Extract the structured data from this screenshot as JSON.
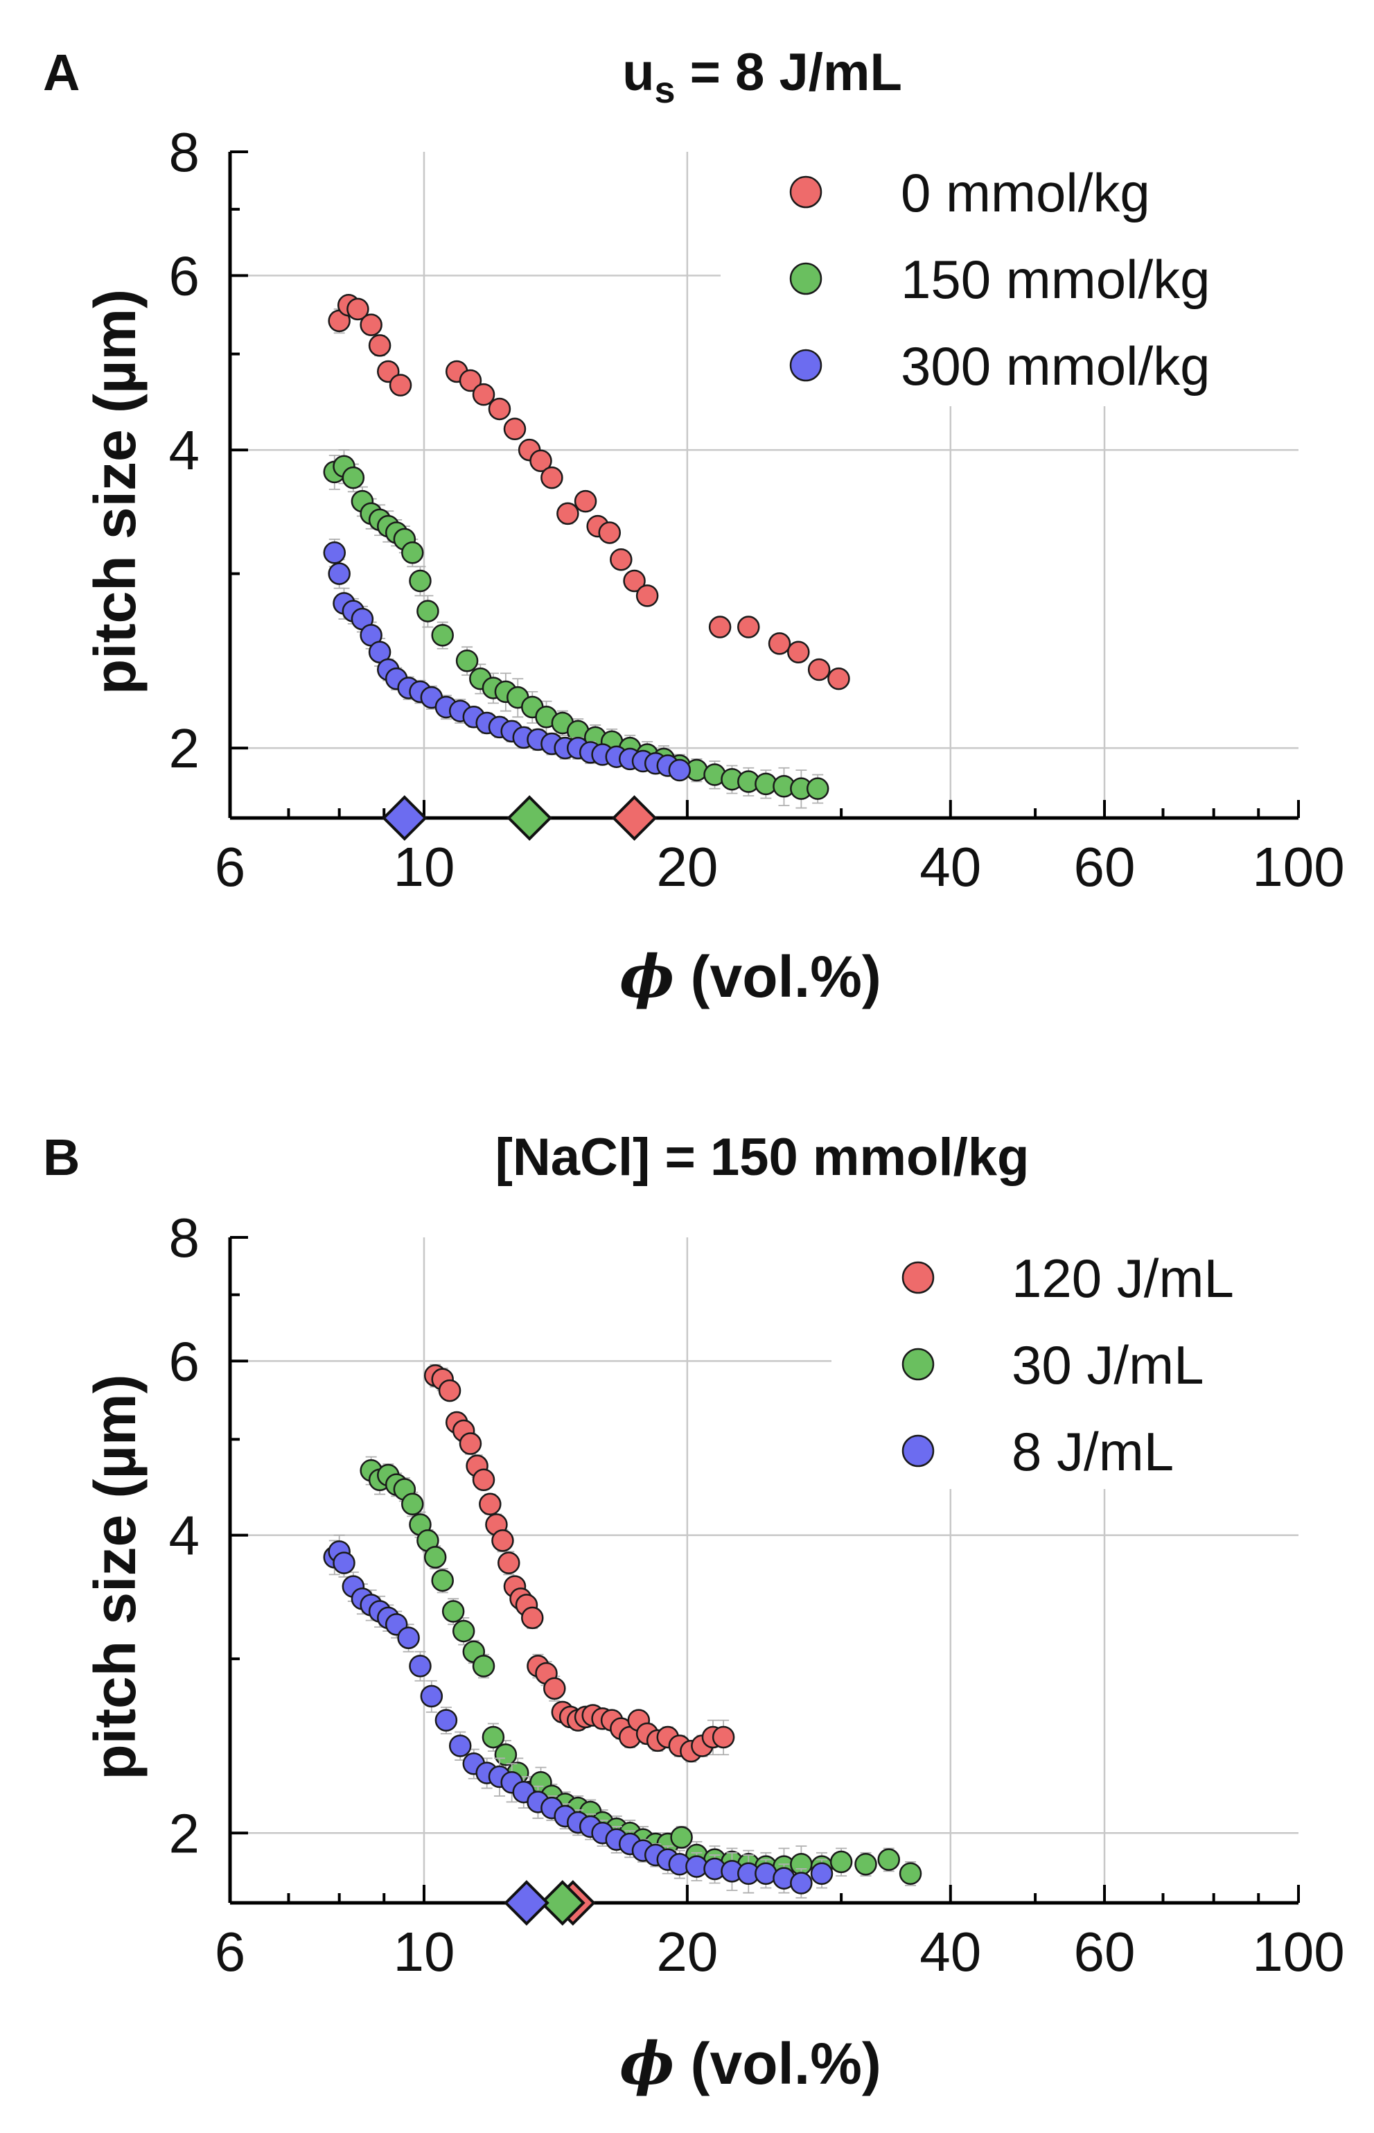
{
  "colors": {
    "red": "#ee6b6b",
    "green": "#6abf5f",
    "blue": "#6c6cf0"
  },
  "chart_data": [
    {
      "type": "scatter",
      "panel_label": "A",
      "title": "u",
      "title_sub": "s",
      "title_rest": " = 8 J/mL",
      "xlabel_symbol": "ϕ",
      "xlabel": " (vol.%)",
      "ylabel": "pitch size (µm)",
      "xscale": "log",
      "yscale": "log",
      "xlim": [
        6,
        100
      ],
      "ylim": [
        1.7,
        8
      ],
      "xticks": [
        6,
        10,
        20,
        40,
        60,
        100
      ],
      "xtick_labels": [
        "6",
        "10",
        "20",
        "40",
        "60",
        "100"
      ],
      "yticks": [
        2,
        4,
        6,
        8
      ],
      "ytick_labels": [
        "2",
        "4",
        "6",
        "8"
      ],
      "legend_position": "top-right",
      "series": [
        {
          "name": "0 mmol/kg",
          "color": "red",
          "x": [
            8.0,
            8.2,
            8.4,
            8.7,
            8.9,
            9.1,
            9.4,
            10.9,
            11.3,
            11.7,
            12.2,
            12.7,
            13.2,
            13.6,
            14.0,
            14.6,
            15.3,
            15.8,
            16.3,
            16.8,
            17.4,
            18.0,
            21.8,
            23.5,
            25.5,
            26.8,
            28.3,
            29.8
          ],
          "y": [
            5.4,
            5.6,
            5.55,
            5.35,
            5.1,
            4.8,
            4.65,
            4.8,
            4.7,
            4.55,
            4.4,
            4.2,
            4.0,
            3.9,
            3.75,
            3.45,
            3.55,
            3.35,
            3.3,
            3.1,
            2.95,
            2.85,
            2.65,
            2.65,
            2.55,
            2.5,
            2.4,
            2.35
          ],
          "yerr": [
            0.15,
            0.12,
            0.12,
            0.12,
            0.12,
            0.1,
            0.1,
            0.1,
            0.1,
            0.08,
            0.08,
            0.08,
            0.08,
            0.08,
            0.08,
            0.08,
            0.08,
            0.06,
            0.06,
            0.06,
            0.06,
            0.06,
            0.05,
            0.05,
            0.05,
            0.05,
            0.05,
            0.05
          ]
        },
        {
          "name": "150 mmol/kg",
          "color": "green",
          "x": [
            7.9,
            8.1,
            8.3,
            8.5,
            8.7,
            8.9,
            9.1,
            9.3,
            9.5,
            9.7,
            9.9,
            10.1,
            10.5,
            11.2,
            11.6,
            12.0,
            12.4,
            12.8,
            13.3,
            13.8,
            14.4,
            15.0,
            15.7,
            16.4,
            17.2,
            18.0,
            18.8,
            19.6,
            20.5,
            21.5,
            22.5,
            23.5,
            24.6,
            25.8,
            27.0,
            28.2
          ],
          "y": [
            3.8,
            3.85,
            3.75,
            3.55,
            3.45,
            3.4,
            3.35,
            3.3,
            3.25,
            3.15,
            2.95,
            2.75,
            2.6,
            2.45,
            2.35,
            2.3,
            2.28,
            2.25,
            2.2,
            2.15,
            2.12,
            2.08,
            2.05,
            2.03,
            2.0,
            1.97,
            1.95,
            1.92,
            1.9,
            1.88,
            1.86,
            1.85,
            1.84,
            1.83,
            1.82,
            1.82
          ],
          "yerr": [
            0.15,
            0.15,
            0.12,
            0.12,
            0.12,
            0.12,
            0.12,
            0.1,
            0.1,
            0.1,
            0.1,
            0.1,
            0.08,
            0.08,
            0.08,
            0.08,
            0.1,
            0.1,
            0.08,
            0.08,
            0.06,
            0.06,
            0.06,
            0.06,
            0.06,
            0.06,
            0.06,
            0.05,
            0.05,
            0.06,
            0.06,
            0.06,
            0.06,
            0.08,
            0.08,
            0.06
          ]
        },
        {
          "name": "300 mmol/kg",
          "color": "blue",
          "x": [
            7.9,
            8.0,
            8.1,
            8.3,
            8.5,
            8.7,
            8.9,
            9.1,
            9.3,
            9.6,
            9.9,
            10.2,
            10.6,
            11.0,
            11.4,
            11.8,
            12.2,
            12.6,
            13.0,
            13.5,
            14.0,
            14.5,
            15.0,
            15.5,
            16.0,
            16.6,
            17.2,
            17.8,
            18.4,
            19.0,
            19.6
          ],
          "y": [
            3.15,
            3.0,
            2.8,
            2.75,
            2.7,
            2.6,
            2.5,
            2.4,
            2.35,
            2.3,
            2.28,
            2.25,
            2.2,
            2.18,
            2.15,
            2.12,
            2.1,
            2.08,
            2.05,
            2.04,
            2.02,
            2.0,
            2.0,
            1.98,
            1.97,
            1.96,
            1.95,
            1.94,
            1.93,
            1.92,
            1.9
          ],
          "yerr": [
            0.1,
            0.1,
            0.1,
            0.08,
            0.08,
            0.08,
            0.08,
            0.06,
            0.06,
            0.06,
            0.06,
            0.06,
            0.06,
            0.06,
            0.05,
            0.05,
            0.05,
            0.05,
            0.05,
            0.05,
            0.05,
            0.05,
            0.05,
            0.05,
            0.04,
            0.04,
            0.04,
            0.04,
            0.04,
            0.04,
            0.04
          ]
        }
      ],
      "markers_on_axis": [
        {
          "color": "blue",
          "x": 9.5
        },
        {
          "color": "green",
          "x": 13.2
        },
        {
          "color": "red",
          "x": 17.4
        }
      ]
    },
    {
      "type": "scatter",
      "panel_label": "B",
      "title": "[NaCl] = 150 mmol/kg",
      "title_sub": "",
      "title_rest": "",
      "xlabel_symbol": "ϕ",
      "xlabel": " (vol.%)",
      "ylabel": "pitch size (µm)",
      "xscale": "log",
      "yscale": "log",
      "xlim": [
        6,
        100
      ],
      "ylim": [
        1.7,
        8
      ],
      "xticks": [
        6,
        10,
        20,
        40,
        60,
        100
      ],
      "xtick_labels": [
        "6",
        "10",
        "20",
        "40",
        "60",
        "100"
      ],
      "yticks": [
        2,
        4,
        6,
        8
      ],
      "ytick_labels": [
        "2",
        "4",
        "6",
        "8"
      ],
      "legend_position": "top-right",
      "series": [
        {
          "name": "120 J/mL",
          "color": "red",
          "x": [
            10.3,
            10.5,
            10.7,
            10.9,
            11.1,
            11.3,
            11.5,
            11.7,
            11.9,
            12.1,
            12.3,
            12.5,
            12.7,
            12.9,
            13.1,
            13.3,
            13.5,
            13.8,
            14.1,
            14.4,
            14.7,
            15.0,
            15.3,
            15.6,
            16.0,
            16.4,
            16.8,
            17.2,
            17.6,
            18.0,
            18.5,
            19.0,
            19.6,
            20.2,
            20.8,
            21.4,
            22.0
          ],
          "y": [
            5.8,
            5.75,
            5.6,
            5.2,
            5.1,
            4.95,
            4.7,
            4.55,
            4.3,
            4.1,
            3.95,
            3.75,
            3.55,
            3.45,
            3.4,
            3.3,
            2.95,
            2.9,
            2.8,
            2.65,
            2.62,
            2.6,
            2.62,
            2.63,
            2.61,
            2.6,
            2.55,
            2.5,
            2.6,
            2.52,
            2.48,
            2.5,
            2.45,
            2.42,
            2.45,
            2.5,
            2.5
          ],
          "yerr": [
            0.15,
            0.15,
            0.12,
            0.12,
            0.12,
            0.12,
            0.12,
            0.1,
            0.1,
            0.1,
            0.1,
            0.1,
            0.08,
            0.08,
            0.08,
            0.08,
            0.08,
            0.08,
            0.08,
            0.06,
            0.06,
            0.06,
            0.06,
            0.06,
            0.06,
            0.06,
            0.06,
            0.06,
            0.06,
            0.06,
            0.06,
            0.06,
            0.06,
            0.06,
            0.06,
            0.1,
            0.1
          ]
        },
        {
          "name": "30 J/mL",
          "color": "green",
          "x": [
            8.7,
            8.9,
            9.1,
            9.3,
            9.5,
            9.7,
            9.9,
            10.1,
            10.3,
            10.5,
            10.8,
            11.1,
            11.4,
            11.7,
            12.0,
            12.4,
            12.8,
            13.2,
            13.6,
            14.0,
            14.5,
            15.0,
            15.5,
            16.0,
            16.6,
            17.2,
            17.8,
            18.4,
            19.0,
            19.7,
            20.5,
            21.5,
            22.5,
            23.5,
            24.6,
            25.8,
            27.0,
            28.5,
            30.0,
            32.0,
            34.0,
            36.0
          ],
          "y": [
            4.65,
            4.55,
            4.6,
            4.5,
            4.45,
            4.3,
            4.1,
            3.95,
            3.8,
            3.6,
            3.35,
            3.2,
            3.05,
            2.95,
            2.5,
            2.4,
            2.3,
            2.2,
            2.25,
            2.18,
            2.14,
            2.12,
            2.1,
            2.05,
            2.02,
            2.0,
            1.97,
            1.95,
            1.95,
            1.98,
            1.9,
            1.88,
            1.87,
            1.86,
            1.85,
            1.85,
            1.86,
            1.85,
            1.87,
            1.86,
            1.88,
            1.82
          ],
          "yerr": [
            0.15,
            0.15,
            0.12,
            0.12,
            0.12,
            0.12,
            0.12,
            0.1,
            0.1,
            0.1,
            0.1,
            0.1,
            0.08,
            0.08,
            0.08,
            0.08,
            0.08,
            0.08,
            0.08,
            0.06,
            0.06,
            0.06,
            0.06,
            0.06,
            0.06,
            0.06,
            0.06,
            0.05,
            0.05,
            0.05,
            0.06,
            0.06,
            0.06,
            0.06,
            0.06,
            0.08,
            0.08,
            0.06,
            0.06,
            0.05,
            0.05,
            0.05
          ]
        },
        {
          "name": "8 J/mL",
          "color": "blue",
          "x": [
            7.9,
            8.0,
            8.1,
            8.3,
            8.5,
            8.7,
            8.9,
            9.1,
            9.3,
            9.6,
            9.9,
            10.2,
            10.6,
            11.0,
            11.4,
            11.8,
            12.2,
            12.6,
            13.0,
            13.5,
            14.0,
            14.5,
            15.0,
            15.5,
            16.0,
            16.6,
            17.2,
            17.8,
            18.4,
            19.0,
            19.6,
            20.5,
            21.5,
            22.5,
            23.5,
            24.6,
            25.8,
            27.0,
            28.5
          ],
          "y": [
            3.8,
            3.85,
            3.75,
            3.55,
            3.45,
            3.4,
            3.35,
            3.3,
            3.25,
            3.15,
            2.95,
            2.75,
            2.6,
            2.45,
            2.35,
            2.3,
            2.28,
            2.25,
            2.2,
            2.15,
            2.12,
            2.08,
            2.05,
            2.03,
            2.0,
            1.97,
            1.95,
            1.92,
            1.9,
            1.88,
            1.86,
            1.85,
            1.84,
            1.83,
            1.82,
            1.82,
            1.8,
            1.78,
            1.82
          ],
          "yerr": [
            0.15,
            0.15,
            0.12,
            0.12,
            0.12,
            0.12,
            0.12,
            0.1,
            0.1,
            0.1,
            0.1,
            0.1,
            0.08,
            0.08,
            0.08,
            0.08,
            0.1,
            0.1,
            0.08,
            0.08,
            0.06,
            0.06,
            0.06,
            0.06,
            0.06,
            0.06,
            0.06,
            0.05,
            0.05,
            0.06,
            0.06,
            0.06,
            0.06,
            0.08,
            0.08,
            0.06,
            0.06,
            0.06,
            0.06
          ]
        }
      ],
      "markers_on_axis": [
        {
          "color": "red",
          "x": 14.8
        },
        {
          "color": "green",
          "x": 14.4
        },
        {
          "color": "blue",
          "x": 13.1
        }
      ]
    }
  ]
}
